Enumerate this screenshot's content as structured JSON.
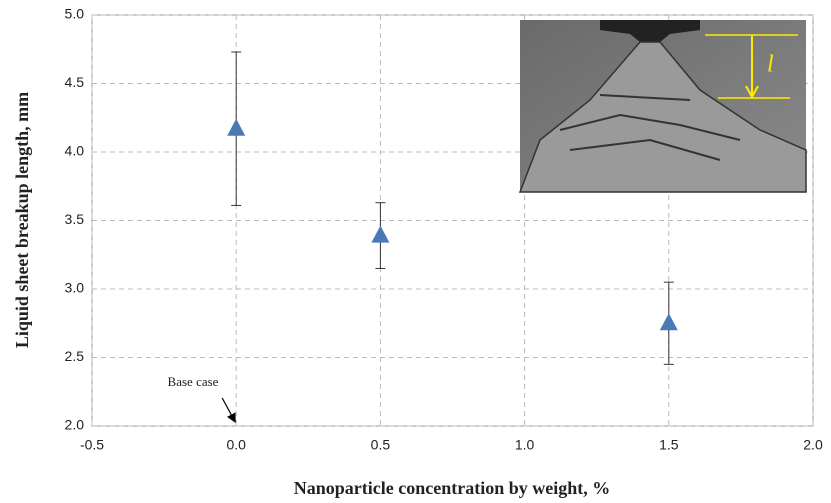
{
  "chart_data": {
    "type": "scatter",
    "xlabel": "Nanoparticle concentration by weight, %",
    "ylabel": "Liquid sheet breakup length, mm",
    "x": [
      0,
      0.5,
      1.5
    ],
    "values": [
      4.17,
      3.39,
      2.75
    ],
    "errors": [
      0.56,
      0.24,
      0.3
    ],
    "color": "#4a7ab5",
    "xlim": [
      -0.5,
      2.0
    ],
    "ylim": [
      2.0,
      5.0
    ],
    "xticks": [
      -0.5,
      {
        "value": 0,
        "label": "0.0"
      },
      0.5,
      {
        "value": 1,
        "label": "1.0"
      },
      1.5,
      {
        "value": 2,
        "label": "2.0"
      }
    ],
    "yticks": [
      {
        "value": 2,
        "label": "2.0"
      },
      2.5,
      {
        "value": 3,
        "label": "3.0"
      },
      3.5,
      {
        "value": 4,
        "label": "4.0"
      },
      4.5,
      {
        "value": 5,
        "label": "5.0"
      }
    ],
    "grid": true,
    "annotation": "Base case",
    "inset_label": "l"
  }
}
